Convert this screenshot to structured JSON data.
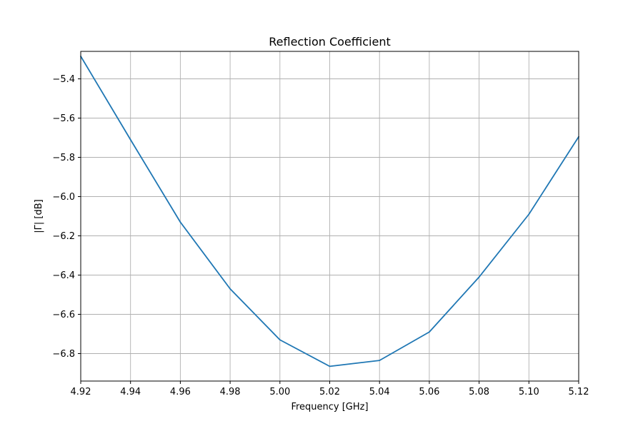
{
  "chart_data": {
    "type": "line",
    "title": "Reflection Coefficient",
    "xlabel": "Frequency [GHz]",
    "ylabel": "|Γ| [dB]",
    "xlim": [
      4.92,
      5.12
    ],
    "ylim": [
      -6.94,
      -5.26
    ],
    "x_ticks": [
      "4.92",
      "4.94",
      "4.96",
      "4.98",
      "5.00",
      "5.02",
      "5.04",
      "5.06",
      "5.08",
      "5.10",
      "5.12"
    ],
    "y_ticks": [
      "-5.4",
      "-5.6",
      "-5.8",
      "-6.0",
      "-6.2",
      "-6.4",
      "-6.6",
      "-6.8"
    ],
    "grid": true,
    "line_color": "#1f77b4",
    "series": [
      {
        "x": [
          4.92,
          4.94,
          4.96,
          4.98,
          5.0,
          5.02,
          5.04,
          5.06,
          5.08,
          5.1,
          5.12
        ],
        "y": [
          -5.285,
          -5.71,
          -6.13,
          -6.47,
          -6.73,
          -6.865,
          -6.835,
          -6.69,
          -6.41,
          -6.09,
          -5.695
        ]
      }
    ]
  }
}
